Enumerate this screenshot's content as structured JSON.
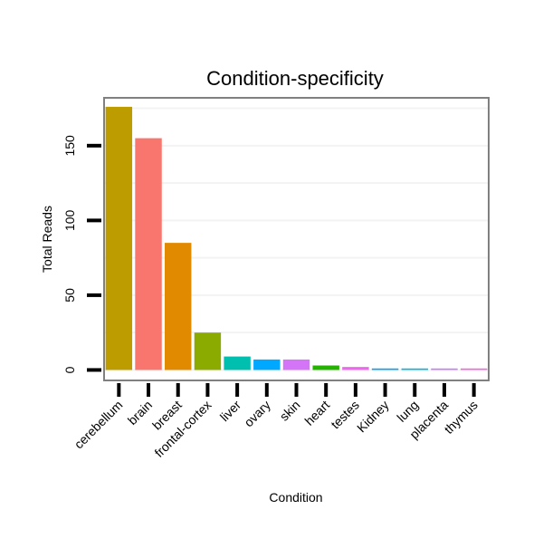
{
  "chart_data": {
    "type": "bar",
    "title": "Condition-specificity",
    "xlabel": "Condition",
    "ylabel": "Total Reads",
    "categories": [
      "cerebellum",
      "brain",
      "breast",
      "frontal-cortex",
      "liver",
      "ovary",
      "skin",
      "heart",
      "testes",
      "Kidney",
      "lung",
      "placenta",
      "thymus"
    ],
    "values": [
      176,
      155,
      85,
      25,
      9,
      7,
      7,
      3,
      2,
      1,
      1,
      1,
      1
    ],
    "colors": [
      "#BD9C00",
      "#F8766D",
      "#E18A00",
      "#8CAB00",
      "#00BFAF",
      "#00A8FF",
      "#D475F7",
      "#24B400",
      "#EC68EC",
      "#00A5FF",
      "#00B8E5",
      "#C87BFF",
      "#F564E3"
    ],
    "yticks": [
      0,
      50,
      100,
      150
    ],
    "ylim": [
      -7,
      182
    ],
    "grid": true,
    "legend": "none"
  }
}
